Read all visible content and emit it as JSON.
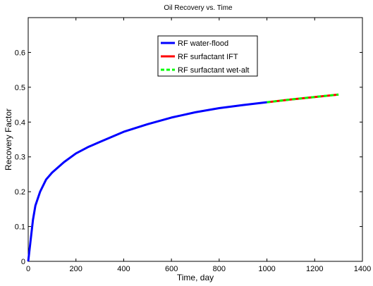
{
  "chart_data": {
    "type": "line",
    "title": "Oil Recovery vs. Time",
    "xlabel": "Time, day",
    "ylabel": "Recovery Factor",
    "xlim": [
      0,
      1400
    ],
    "ylim": [
      0,
      0.7
    ],
    "xticks": [
      0,
      200,
      400,
      600,
      800,
      1000,
      1200,
      1400
    ],
    "yticks": [
      0,
      0.1,
      0.2,
      0.3,
      0.4,
      0.5,
      0.6
    ],
    "grid": false,
    "legend_position": "top-center",
    "series": [
      {
        "name": "RF water-flood",
        "color": "#0000ff",
        "style": "solid",
        "x": [
          0,
          10,
          20,
          30,
          50,
          75,
          100,
          150,
          200,
          250,
          300,
          400,
          500,
          600,
          700,
          800,
          900,
          1000
        ],
        "y": [
          0,
          0.06,
          0.12,
          0.16,
          0.2,
          0.235,
          0.255,
          0.285,
          0.31,
          0.328,
          0.343,
          0.372,
          0.394,
          0.413,
          0.428,
          0.44,
          0.449,
          0.457
        ]
      },
      {
        "name": "RF surfactant IFT",
        "color": "#ff0000",
        "style": "solid",
        "x": [
          1000,
          1100,
          1200,
          1300
        ],
        "y": [
          0.457,
          0.465,
          0.472,
          0.479
        ]
      },
      {
        "name": "RF surfactant wet-alt",
        "color": "#00ff00",
        "style": "dashed",
        "x": [
          1000,
          1100,
          1200,
          1300
        ],
        "y": [
          0.457,
          0.465,
          0.472,
          0.479
        ]
      }
    ]
  }
}
